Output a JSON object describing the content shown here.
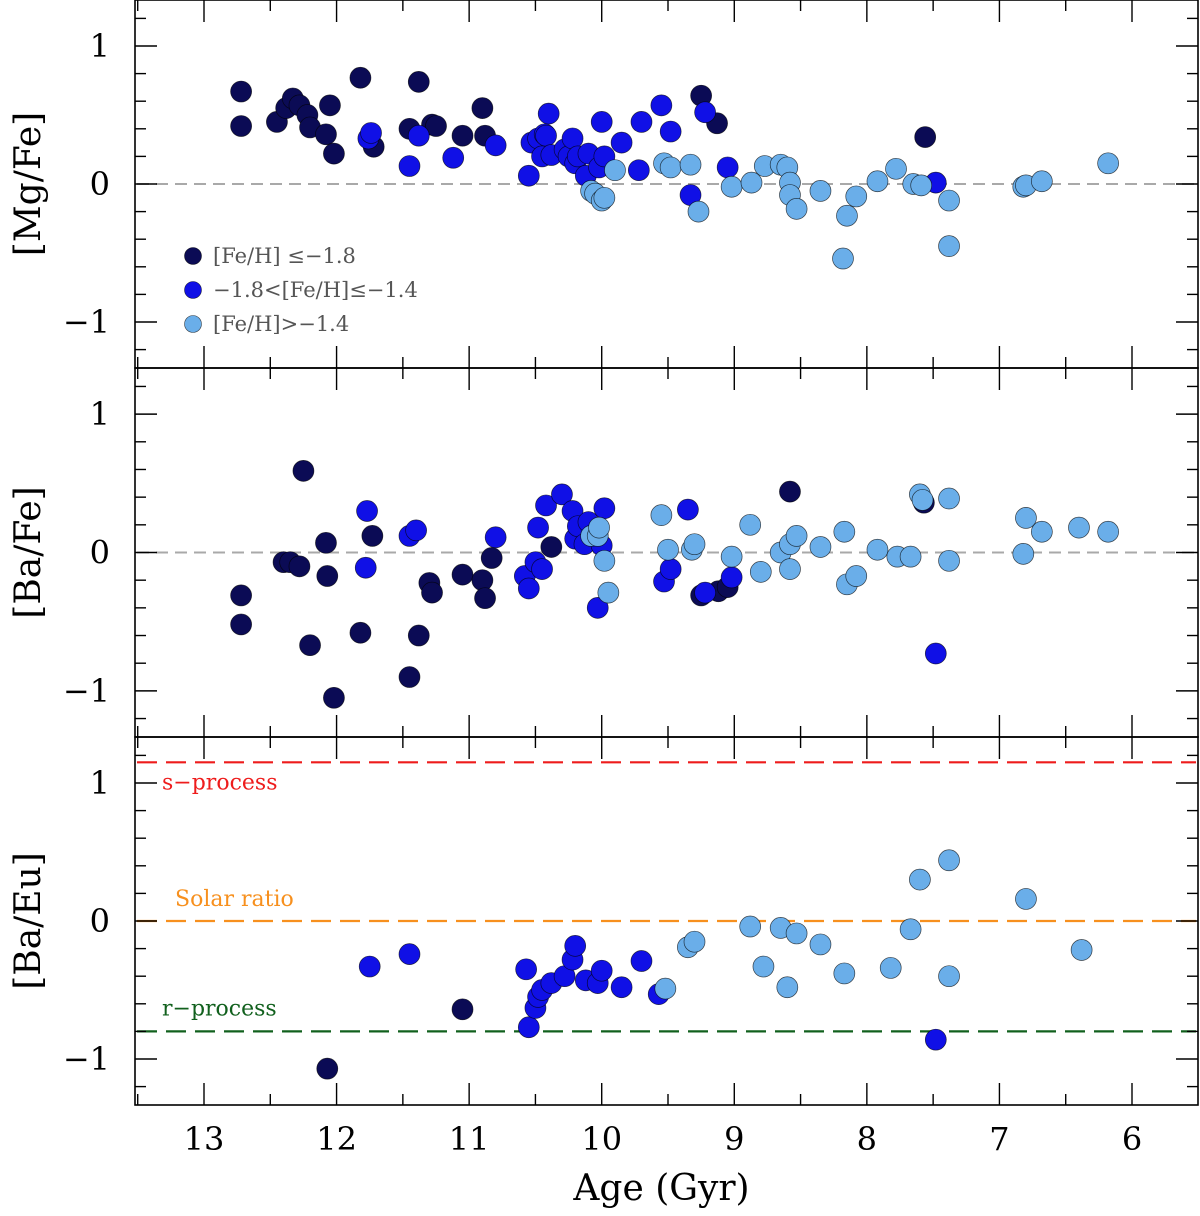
{
  "chart_data": [
    {
      "type": "scatter",
      "panel": "top",
      "ylabel": "[Mg/Fe]",
      "xlabel": "",
      "xlim": [
        13.5,
        5.5
      ],
      "ylim": [
        -1.4,
        1.4
      ],
      "x_reversed": true,
      "yticks": [
        "1",
        "0",
        "−1"
      ],
      "xticks": [],
      "legend": {
        "placement": "bottom-left",
        "entries": [
          {
            "label": "[Fe/H] ≤−1.8",
            "color": "#0b0b55"
          },
          {
            "label": "−1.8<[Fe/H]≤−1.4",
            "color": "#1010e6"
          },
          {
            "label": "[Fe/H]>−1.4",
            "color": "#6aaee9"
          }
        ]
      },
      "reference_lines": [
        {
          "y": 0,
          "color": "#a9a9a9",
          "style": "dashed",
          "label": ""
        }
      ],
      "series": [
        {
          "color": "#0b0b55",
          "x": [
            12.72,
            12.72,
            12.45,
            12.38,
            12.33,
            12.28,
            12.22,
            12.2,
            12.08,
            12.05,
            12.02,
            11.82,
            11.72,
            11.45,
            11.38,
            11.28,
            11.25,
            11.05,
            10.9,
            10.88,
            9.25,
            9.13,
            7.56
          ],
          "y": [
            0.67,
            0.42,
            0.45,
            0.55,
            0.62,
            0.57,
            0.5,
            0.41,
            0.36,
            0.57,
            0.22,
            0.77,
            0.27,
            0.4,
            0.74,
            0.43,
            0.42,
            0.35,
            0.55,
            0.35,
            0.64,
            0.44,
            0.34
          ]
        },
        {
          "color": "#1010e6",
          "x": [
            11.76,
            11.74,
            11.45,
            11.38,
            11.12,
            10.8,
            10.55,
            10.53,
            10.48,
            10.45,
            10.43,
            10.42,
            10.4,
            10.38,
            10.28,
            10.25,
            10.22,
            10.2,
            10.18,
            10.12,
            10.1,
            10.02,
            10.0,
            9.98,
            9.85,
            9.72,
            9.7,
            9.55,
            9.48,
            9.22,
            9.33,
            9.05,
            7.48
          ],
          "y": [
            0.33,
            0.37,
            0.13,
            0.35,
            0.19,
            0.28,
            0.06,
            0.3,
            0.33,
            0.2,
            0.36,
            0.35,
            0.51,
            0.21,
            0.25,
            0.2,
            0.33,
            0.15,
            0.2,
            0.06,
            0.22,
            0.12,
            0.45,
            0.2,
            0.3,
            0.1,
            0.45,
            0.57,
            0.38,
            0.52,
            -0.08,
            0.12,
            0.01
          ]
        },
        {
          "color": "#6aaee9",
          "x": [
            10.08,
            10.05,
            10.0,
            9.98,
            9.9,
            9.53,
            9.48,
            9.33,
            9.27,
            9.02,
            8.87,
            8.77,
            8.65,
            8.6,
            8.58,
            8.58,
            8.53,
            8.35,
            8.18,
            8.15,
            8.08,
            7.92,
            7.78,
            7.65,
            7.59,
            7.38,
            7.38,
            6.82,
            6.8,
            6.68,
            6.18
          ],
          "y": [
            -0.05,
            -0.07,
            -0.12,
            -0.1,
            0.1,
            0.15,
            0.12,
            0.14,
            -0.2,
            -0.02,
            0.01,
            0.13,
            0.14,
            0.12,
            0.01,
            -0.08,
            -0.18,
            -0.05,
            -0.54,
            -0.23,
            -0.09,
            0.02,
            0.11,
            0.0,
            -0.01,
            -0.12,
            -0.45,
            -0.02,
            -0.01,
            0.02,
            0.15
          ]
        }
      ]
    },
    {
      "type": "scatter",
      "panel": "middle",
      "ylabel": "[Ba/Fe]",
      "xlabel": "",
      "xlim": [
        13.5,
        5.5
      ],
      "ylim": [
        -1.4,
        1.4
      ],
      "x_reversed": true,
      "yticks": [
        "1",
        "0",
        "−1"
      ],
      "xticks": [],
      "reference_lines": [
        {
          "y": 0,
          "color": "#a9a9a9",
          "style": "dashed",
          "label": ""
        }
      ],
      "series": [
        {
          "color": "#0b0b55",
          "x": [
            12.72,
            12.72,
            12.4,
            12.35,
            12.28,
            12.25,
            12.2,
            12.08,
            12.07,
            12.02,
            11.82,
            11.73,
            11.45,
            11.38,
            11.3,
            11.28,
            11.05,
            10.9,
            10.88,
            10.83,
            10.38,
            9.25,
            9.12,
            9.05,
            8.58,
            7.57
          ],
          "y": [
            -0.31,
            -0.52,
            -0.07,
            -0.07,
            -0.1,
            0.59,
            -0.67,
            0.07,
            -0.17,
            -1.05,
            -0.58,
            0.12,
            -0.9,
            -0.6,
            -0.22,
            -0.29,
            -0.16,
            -0.2,
            -0.33,
            -0.04,
            0.04,
            -0.31,
            -0.28,
            -0.25,
            0.44,
            0.36
          ]
        },
        {
          "color": "#1010e6",
          "x": [
            11.78,
            11.77,
            11.45,
            11.4,
            10.8,
            10.58,
            10.55,
            10.5,
            10.48,
            10.45,
            10.42,
            10.3,
            10.22,
            10.2,
            10.18,
            10.13,
            10.1,
            10.03,
            10.0,
            9.98,
            9.53,
            9.48,
            9.35,
            9.22,
            9.02,
            7.48
          ],
          "y": [
            -0.11,
            0.3,
            0.12,
            0.16,
            0.11,
            -0.17,
            -0.26,
            -0.07,
            0.18,
            -0.12,
            0.34,
            0.42,
            0.3,
            0.1,
            0.19,
            0.06,
            0.22,
            -0.4,
            0.05,
            0.32,
            -0.21,
            -0.12,
            0.31,
            -0.29,
            -0.18,
            -0.73
          ]
        },
        {
          "color": "#6aaee9",
          "x": [
            10.08,
            10.03,
            10.02,
            9.98,
            9.95,
            9.55,
            9.5,
            9.32,
            9.3,
            9.02,
            8.88,
            8.8,
            8.65,
            8.58,
            8.58,
            8.53,
            8.35,
            8.17,
            8.15,
            8.08,
            7.92,
            7.77,
            7.67,
            7.6,
            7.58,
            7.38,
            7.38,
            6.82,
            6.8,
            6.68,
            6.4,
            6.18
          ],
          "y": [
            0.12,
            0.12,
            0.18,
            -0.06,
            -0.29,
            0.27,
            0.02,
            0.02,
            0.06,
            -0.03,
            0.2,
            -0.14,
            0.0,
            -0.12,
            0.06,
            0.12,
            0.04,
            0.15,
            -0.23,
            -0.17,
            0.02,
            -0.03,
            -0.03,
            0.42,
            0.38,
            0.39,
            -0.06,
            -0.01,
            0.25,
            0.15,
            0.18,
            0.15
          ]
        }
      ]
    },
    {
      "type": "scatter",
      "panel": "bottom",
      "ylabel": "[Ba/Eu]",
      "xlabel": "Age (Gyr)",
      "xlim": [
        13.5,
        5.5
      ],
      "ylim": [
        -1.4,
        1.4
      ],
      "x_reversed": true,
      "yticks": [
        "1",
        "0",
        "−1"
      ],
      "xticks": [
        "13",
        "12",
        "11",
        "10",
        "9",
        "8",
        "7",
        "6"
      ],
      "reference_lines": [
        {
          "y": 1.15,
          "color": "#ee1c1c",
          "style": "dashed",
          "label": "s−process"
        },
        {
          "y": 0,
          "color": "#f7901e",
          "style": "dashed",
          "label": "Solar ratio"
        },
        {
          "y": -0.8,
          "color": "#11601d",
          "style": "dashed",
          "label": "r−process"
        }
      ],
      "series": [
        {
          "color": "#0b0b55",
          "x": [
            12.07,
            11.05
          ],
          "y": [
            -1.07,
            -0.64
          ]
        },
        {
          "color": "#1010e6",
          "x": [
            11.75,
            11.45,
            10.57,
            10.55,
            10.5,
            10.48,
            10.45,
            10.38,
            10.28,
            10.22,
            10.2,
            10.12,
            10.03,
            10.0,
            9.85,
            9.7,
            9.57,
            7.48
          ],
          "y": [
            -0.33,
            -0.24,
            -0.35,
            -0.77,
            -0.63,
            -0.55,
            -0.5,
            -0.45,
            -0.4,
            -0.28,
            -0.18,
            -0.43,
            -0.45,
            -0.36,
            -0.48,
            -0.29,
            -0.53,
            -0.86
          ]
        },
        {
          "color": "#6aaee9",
          "x": [
            9.52,
            9.35,
            9.3,
            8.88,
            8.78,
            8.65,
            8.6,
            8.53,
            8.35,
            8.17,
            7.82,
            7.67,
            7.6,
            7.38,
            7.38,
            6.8,
            6.38
          ],
          "y": [
            -0.49,
            -0.19,
            -0.15,
            -0.04,
            -0.33,
            -0.05,
            -0.48,
            -0.09,
            -0.17,
            -0.38,
            -0.34,
            -0.06,
            0.3,
            0.44,
            -0.4,
            0.16,
            -0.21
          ]
        }
      ]
    }
  ]
}
